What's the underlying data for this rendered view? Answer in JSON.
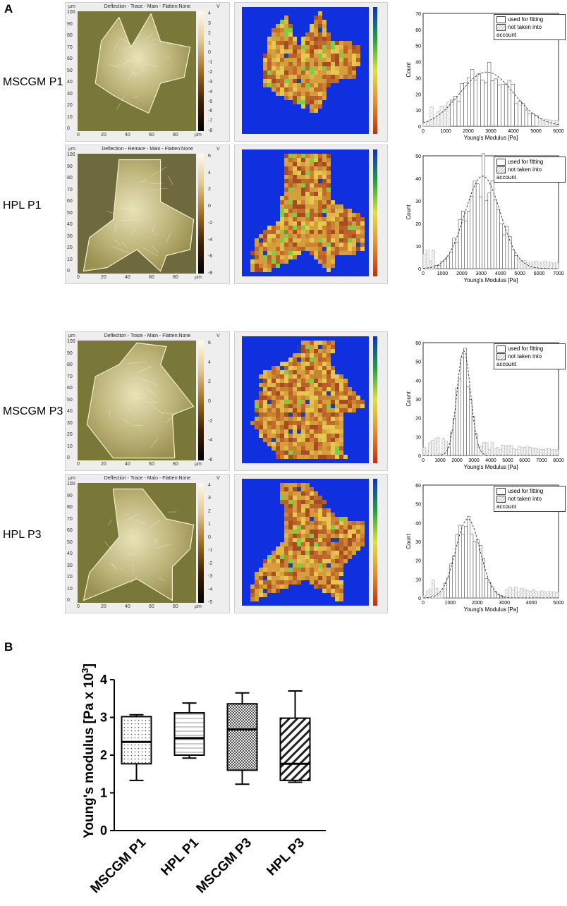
{
  "panel_a_label": "A",
  "panel_b_label": "B",
  "rows": [
    {
      "label": "MSCGM P1",
      "afm_title": "Deflection - Trace - Main  -  Flatten:None",
      "cbar_ticks": [
        "4",
        "3",
        "2",
        "1",
        "0",
        "-1",
        "-2",
        "-3",
        "-4",
        "-5",
        "-6",
        "-7",
        "-8"
      ],
      "hist_ymax": "70",
      "hist_yticks": [
        "70",
        "60",
        "50",
        "40",
        "30",
        "20",
        "10",
        "0"
      ],
      "hist_xticks": [
        "0",
        "1000",
        "2000",
        "3000",
        "4000",
        "5000",
        "6000"
      ]
    },
    {
      "label": "HPL P1",
      "afm_title": "Deflection - Retrace - Main  -  Flatten:None",
      "cbar_ticks": [
        "6",
        "4",
        "2",
        "0",
        "-2",
        "-4",
        "-6",
        "-8"
      ],
      "hist_ymax": "50",
      "hist_yticks": [
        "50",
        "40",
        "30",
        "20",
        "10",
        "0"
      ],
      "hist_xticks": [
        "0",
        "1000",
        "2000",
        "3000",
        "4000",
        "5000",
        "6000",
        "7000"
      ]
    },
    {
      "label": "MSCGM P3",
      "afm_title": "Deflection - Trace - Main  -  Flatten:None",
      "cbar_ticks": [
        "6",
        "4",
        "2",
        "0",
        "-2",
        "-4",
        "-6"
      ],
      "hist_ymax": "60",
      "hist_yticks": [
        "60",
        "50",
        "40",
        "30",
        "20",
        "10",
        "0"
      ],
      "hist_xticks": [
        "0",
        "1000",
        "2000",
        "3000",
        "4000",
        "5000",
        "6000",
        "7000",
        "8000"
      ]
    },
    {
      "label": "HPL P3",
      "afm_title": "Deflection - Trace - Main  -  Flatten:None",
      "cbar_ticks": [
        "4",
        "3",
        "2",
        "1",
        "0",
        "-1",
        "-2",
        "-3",
        "-4",
        "-5"
      ],
      "hist_ymax": "60",
      "hist_yticks": [
        "60",
        "50",
        "40",
        "30",
        "20",
        "10",
        "0"
      ],
      "hist_xticks": [
        "0",
        "1000",
        "2000",
        "3000",
        "4000",
        "5000"
      ]
    }
  ],
  "afm_common": {
    "y_unit": "µm",
    "x_unit": "µm",
    "v_unit": "V",
    "yticks": [
      "100",
      "90",
      "80",
      "70",
      "60",
      "50",
      "40",
      "30",
      "20",
      "10",
      "0"
    ],
    "xticks": [
      "0",
      "20",
      "40",
      "60",
      "80"
    ]
  },
  "hist_common": {
    "xlabel": "Young's Modulus [Pa]",
    "ylabel": "Count",
    "legend_used": "used for fitting",
    "legend_not": "not taken into account"
  },
  "colors": {
    "afm_bg": "#7a7a3a",
    "map_blue": "#1030e0",
    "map_orange": "#d08a30"
  },
  "chart_data": {
    "type": "box",
    "ylabel": "Young's modulus [Pa x 10",
    "ylabel_sup": "3",
    "ylabel_end": "]",
    "ylim": [
      0,
      4
    ],
    "yticks": [
      "0",
      "1",
      "2",
      "3",
      "4"
    ],
    "categories": [
      "MSCGM P1",
      "HPL P1",
      "MSCGM P3",
      "HPL P3"
    ],
    "boxes": [
      {
        "name": "MSCGM P1",
        "min": 1.33,
        "q1": 1.77,
        "median": 2.35,
        "q3": 3.02,
        "max": 3.07,
        "pattern": "dots"
      },
      {
        "name": "HPL P1",
        "min": 1.92,
        "q1": 2.0,
        "median": 2.45,
        "q3": 3.12,
        "max": 3.38,
        "pattern": "hlines"
      },
      {
        "name": "MSCGM P3",
        "min": 1.23,
        "q1": 1.6,
        "median": 2.68,
        "q3": 3.36,
        "max": 3.65,
        "pattern": "checker"
      },
      {
        "name": "HPL P3",
        "min": 1.28,
        "q1": 1.33,
        "median": 1.77,
        "q3": 2.98,
        "max": 3.7,
        "pattern": "diag"
      }
    ]
  }
}
